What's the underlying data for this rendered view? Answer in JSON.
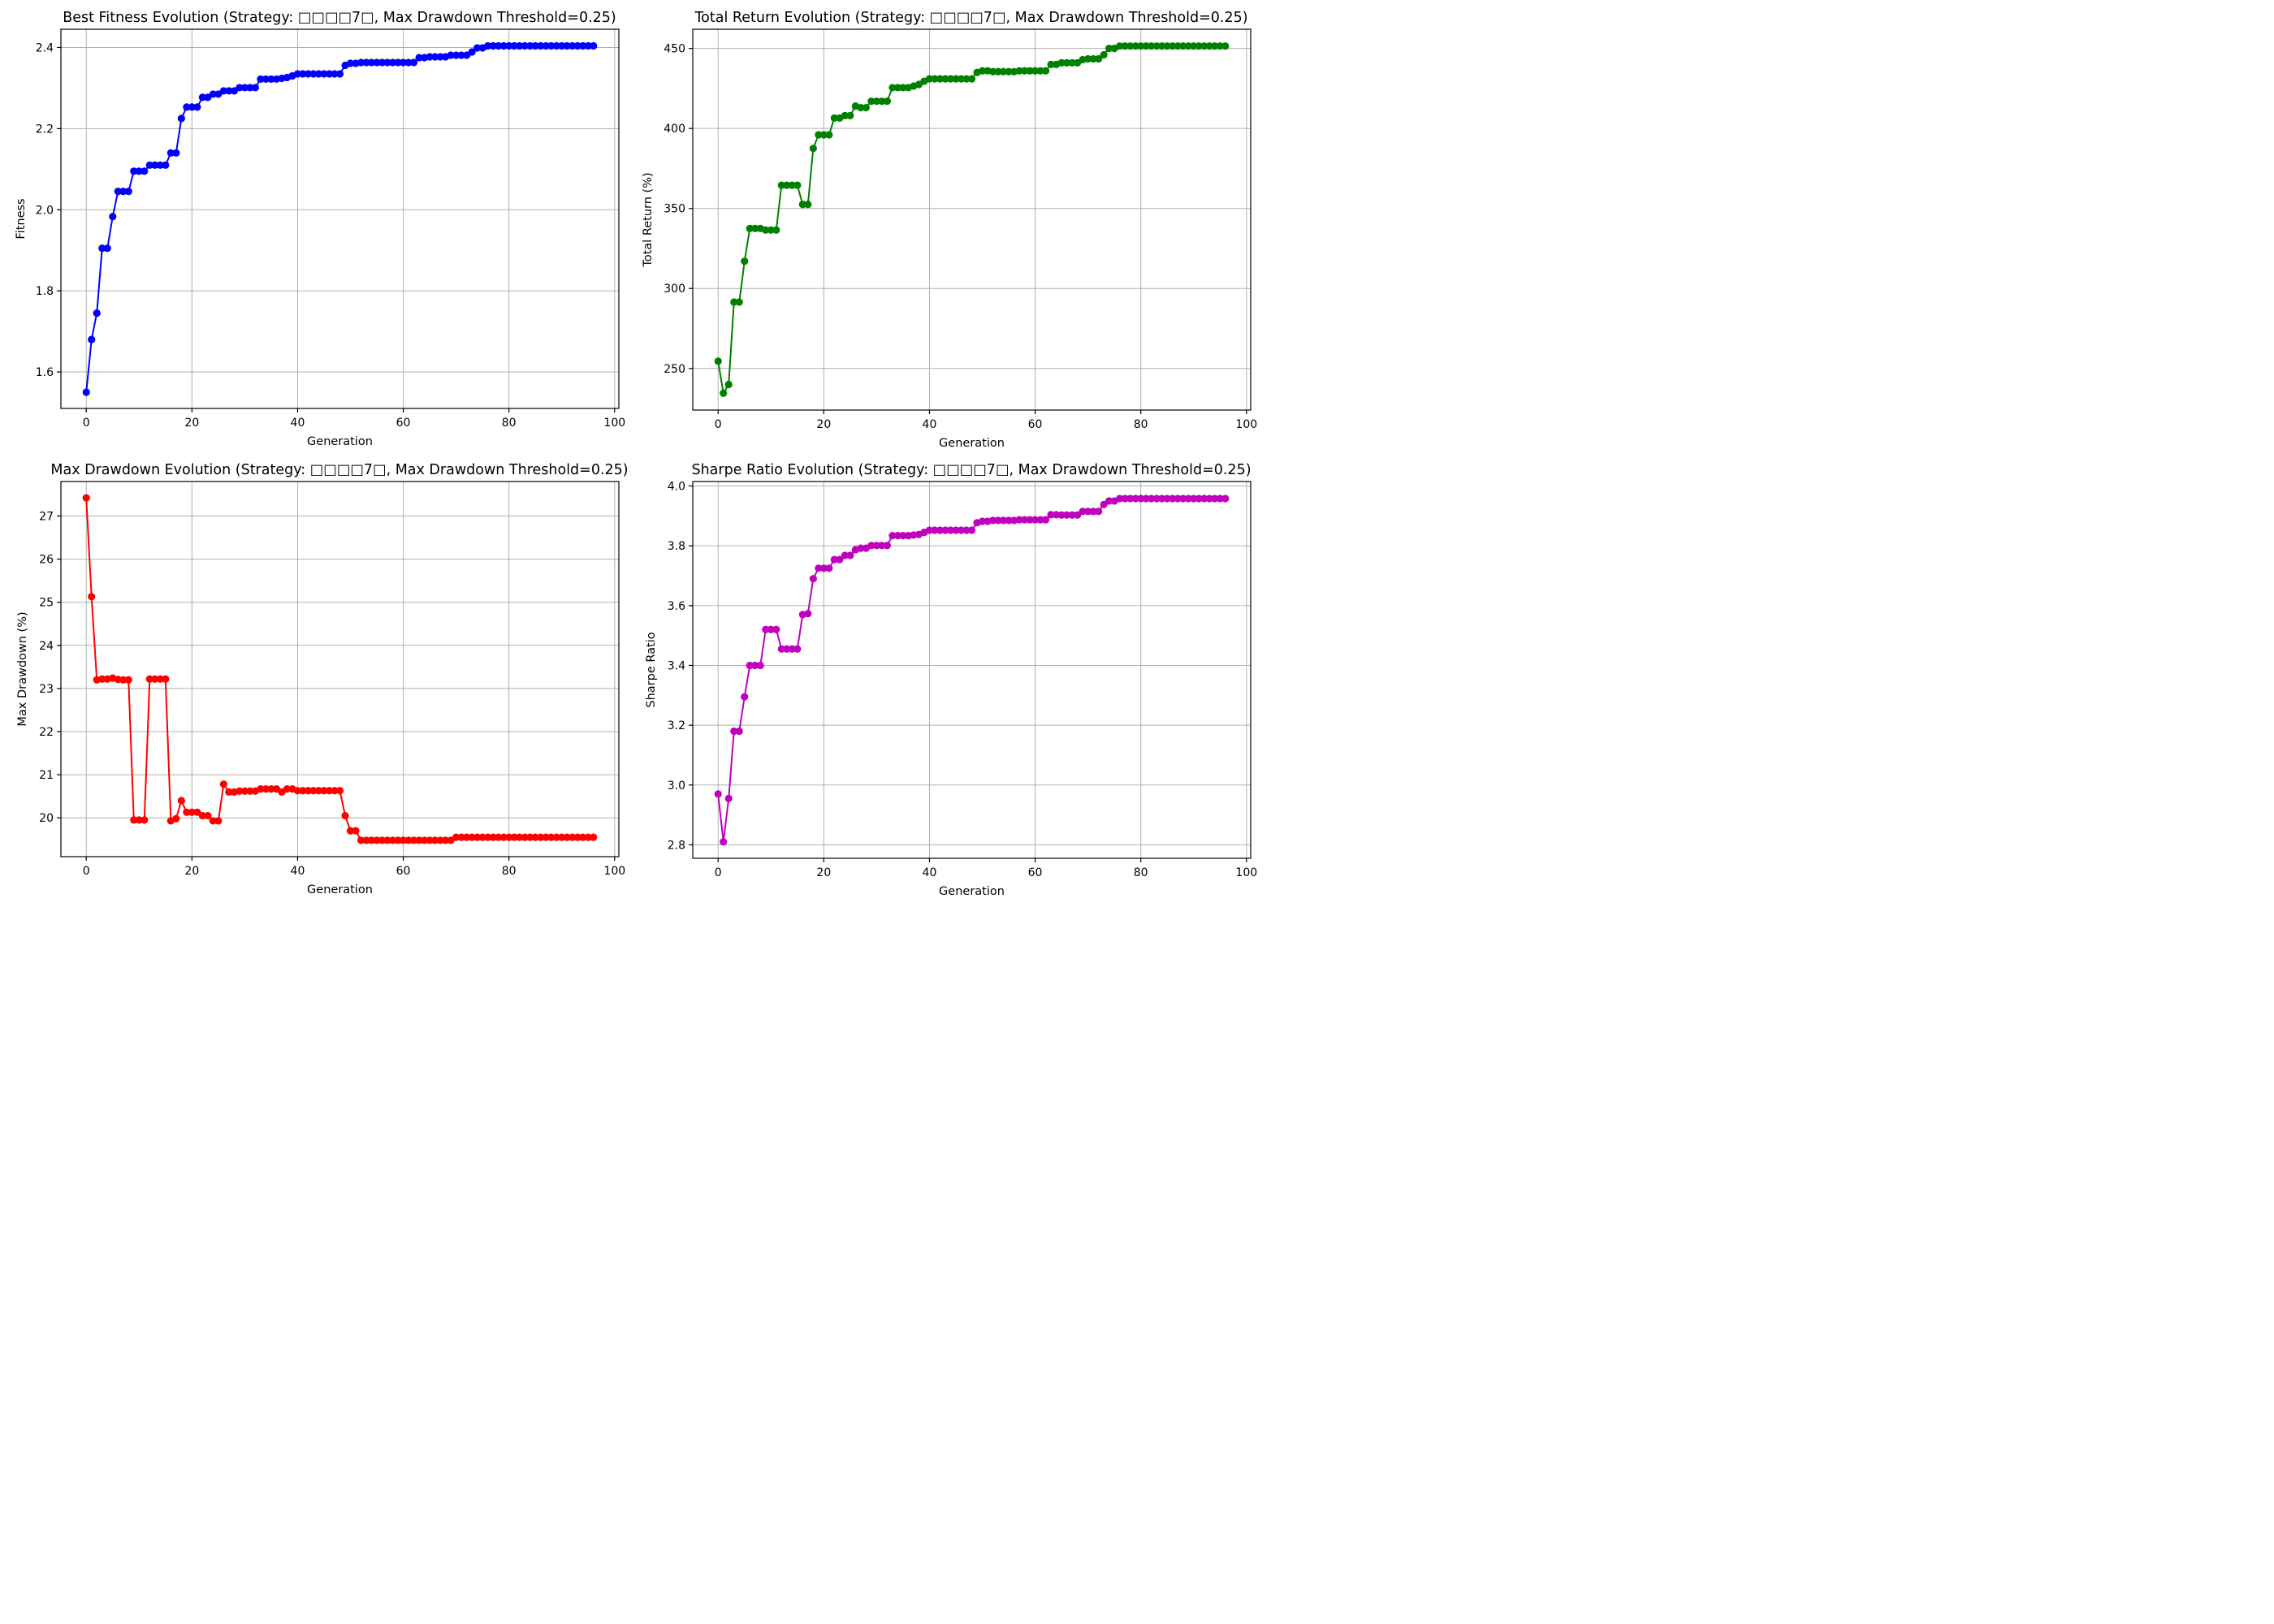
{
  "colors": {
    "fitness": "#0000ff",
    "return": "#008000",
    "drawdown": "#ff0000",
    "sharpe": "#bf00bf"
  },
  "chart_data": [
    {
      "type": "line",
      "title": "Best Fitness Evolution (Strategy: □□□□7□, Max Drawdown Threshold=0.25)",
      "xlabel": "Generation",
      "ylabel": "Fitness",
      "xlim": [
        -4.8,
        100.8
      ],
      "ylim": [
        1.51,
        2.445
      ],
      "xticks": [
        0,
        20,
        40,
        60,
        80,
        100
      ],
      "yticks": [
        1.6,
        1.8,
        2.0,
        2.2,
        2.4
      ],
      "ytick_labels": [
        "1.6",
        "1.8",
        "2.0",
        "2.2",
        "2.4"
      ],
      "grid": true,
      "marker": "circle",
      "color": "#0000ff",
      "x": [
        0,
        1,
        2,
        3,
        4,
        5,
        6,
        7,
        8,
        9,
        10,
        11,
        12,
        13,
        14,
        15,
        16,
        17,
        18,
        19,
        20,
        21,
        22,
        23,
        24,
        25,
        26,
        27,
        28,
        29,
        30,
        31,
        32,
        33,
        34,
        35,
        36,
        37,
        38,
        39,
        40,
        41,
        42,
        43,
        44,
        45,
        46,
        47,
        48,
        49,
        50,
        51,
        52,
        53,
        54,
        55,
        56,
        57,
        58,
        59,
        60,
        61,
        62,
        63,
        64,
        65,
        66,
        67,
        68,
        69,
        70,
        71,
        72,
        73,
        74,
        75,
        76,
        77,
        78,
        79,
        80,
        81,
        82,
        83,
        84,
        85,
        86,
        87,
        88,
        89,
        90,
        91,
        92,
        93,
        94,
        95,
        96
      ],
      "y": [
        1.55,
        1.68,
        1.745,
        1.905,
        1.905,
        1.983,
        2.045,
        2.045,
        2.045,
        2.095,
        2.095,
        2.095,
        2.11,
        2.11,
        2.11,
        2.11,
        2.14,
        2.14,
        2.225,
        2.253,
        2.253,
        2.253,
        2.277,
        2.277,
        2.285,
        2.285,
        2.293,
        2.293,
        2.293,
        2.301,
        2.301,
        2.301,
        2.301,
        2.322,
        2.322,
        2.322,
        2.322,
        2.324,
        2.326,
        2.33,
        2.335,
        2.335,
        2.335,
        2.335,
        2.335,
        2.335,
        2.335,
        2.335,
        2.335,
        2.356,
        2.361,
        2.361,
        2.363,
        2.363,
        2.363,
        2.363,
        2.363,
        2.363,
        2.363,
        2.363,
        2.363,
        2.363,
        2.363,
        2.375,
        2.375,
        2.377,
        2.377,
        2.377,
        2.377,
        2.381,
        2.381,
        2.381,
        2.381,
        2.389,
        2.399,
        2.399,
        2.404,
        2.404,
        2.404,
        2.404,
        2.404,
        2.404,
        2.404,
        2.404,
        2.404,
        2.404,
        2.404,
        2.404,
        2.404,
        2.404,
        2.404,
        2.404,
        2.404,
        2.404,
        2.404,
        2.404,
        2.404
      ]
    },
    {
      "type": "line",
      "title": "Total Return Evolution (Strategy: □□□□7□, Max Drawdown Threshold=0.25)",
      "xlabel": "Generation",
      "ylabel": "Total Return (%)",
      "xlim": [
        -4.8,
        100.8
      ],
      "ylim": [
        224,
        462
      ],
      "xticks": [
        0,
        20,
        40,
        60,
        80,
        100
      ],
      "yticks": [
        250,
        300,
        350,
        400,
        450
      ],
      "ytick_labels": [
        "250",
        "300",
        "350",
        "400",
        "450"
      ],
      "grid": true,
      "marker": "circle",
      "color": "#008000",
      "x": [
        0,
        1,
        2,
        3,
        4,
        5,
        6,
        7,
        8,
        9,
        10,
        11,
        12,
        13,
        14,
        15,
        16,
        17,
        18,
        19,
        20,
        21,
        22,
        23,
        24,
        25,
        26,
        27,
        28,
        29,
        30,
        31,
        32,
        33,
        34,
        35,
        36,
        37,
        38,
        39,
        40,
        41,
        42,
        43,
        44,
        45,
        46,
        47,
        48,
        49,
        50,
        51,
        52,
        53,
        54,
        55,
        56,
        57,
        58,
        59,
        60,
        61,
        62,
        63,
        64,
        65,
        66,
        67,
        68,
        69,
        70,
        71,
        72,
        73,
        74,
        75,
        76,
        77,
        78,
        79,
        80,
        81,
        82,
        83,
        84,
        85,
        86,
        87,
        88,
        89,
        90,
        91,
        92,
        93,
        94,
        95,
        96
      ],
      "y": [
        254.5,
        234.5,
        240,
        291.5,
        291.5,
        317,
        337.5,
        337.5,
        337.5,
        336.5,
        336.5,
        336.5,
        364.5,
        364.5,
        364.5,
        364.5,
        352.5,
        352.5,
        387.5,
        396,
        396,
        396,
        406.5,
        406.5,
        408,
        408,
        414,
        413,
        413,
        417,
        417,
        417,
        417,
        425.5,
        425.5,
        425.5,
        425.5,
        426.5,
        427.5,
        429.5,
        431,
        431,
        431,
        431,
        431,
        431,
        431,
        431,
        431,
        435,
        436,
        436,
        435.5,
        435.5,
        435.5,
        435.5,
        435.5,
        436,
        436,
        436,
        436,
        436,
        436,
        440,
        440,
        441,
        441,
        441,
        441,
        443,
        443.5,
        443.5,
        443.5,
        446,
        450,
        450,
        451.5,
        451.5,
        451.5,
        451.5,
        451.5,
        451.5,
        451.5,
        451.5,
        451.5,
        451.5,
        451.5,
        451.5,
        451.5,
        451.5,
        451.5,
        451.5,
        451.5,
        451.5,
        451.5,
        451.5,
        451.5
      ]
    },
    {
      "type": "line",
      "title": "Max Drawdown Evolution (Strategy: □□□□7□, Max Drawdown Threshold=0.25)",
      "xlabel": "Generation",
      "ylabel": "Max Drawdown (%)",
      "xlim": [
        -4.8,
        100.8
      ],
      "ylim": [
        19.1,
        27.8
      ],
      "xticks": [
        0,
        20,
        40,
        60,
        80,
        100
      ],
      "yticks": [
        20,
        21,
        22,
        23,
        24,
        25,
        26,
        27
      ],
      "ytick_labels": [
        "20",
        "21",
        "22",
        "23",
        "24",
        "25",
        "26",
        "27"
      ],
      "grid": true,
      "marker": "circle",
      "color": "#ff0000",
      "x": [
        0,
        1,
        2,
        3,
        4,
        5,
        6,
        7,
        8,
        9,
        10,
        11,
        12,
        13,
        14,
        15,
        16,
        17,
        18,
        19,
        20,
        21,
        22,
        23,
        24,
        25,
        26,
        27,
        28,
        29,
        30,
        31,
        32,
        33,
        34,
        35,
        36,
        37,
        38,
        39,
        40,
        41,
        42,
        43,
        44,
        45,
        46,
        47,
        48,
        49,
        50,
        51,
        52,
        53,
        54,
        55,
        56,
        57,
        58,
        59,
        60,
        61,
        62,
        63,
        64,
        65,
        66,
        67,
        68,
        69,
        70,
        71,
        72,
        73,
        74,
        75,
        76,
        77,
        78,
        79,
        80,
        81,
        82,
        83,
        84,
        85,
        86,
        87,
        88,
        89,
        90,
        91,
        92,
        93,
        94,
        95,
        96
      ],
      "y": [
        27.42,
        25.13,
        23.2,
        23.22,
        23.22,
        23.24,
        23.21,
        23.2,
        23.2,
        19.95,
        19.95,
        19.95,
        23.22,
        23.22,
        23.22,
        23.22,
        19.93,
        19.98,
        20.4,
        20.13,
        20.13,
        20.13,
        20.05,
        20.05,
        19.93,
        19.93,
        20.78,
        20.6,
        20.6,
        20.62,
        20.62,
        20.62,
        20.62,
        20.67,
        20.67,
        20.67,
        20.67,
        20.6,
        20.67,
        20.67,
        20.63,
        20.63,
        20.63,
        20.63,
        20.63,
        20.63,
        20.63,
        20.63,
        20.63,
        20.05,
        19.7,
        19.7,
        19.48,
        19.48,
        19.48,
        19.48,
        19.48,
        19.48,
        19.48,
        19.48,
        19.48,
        19.48,
        19.48,
        19.48,
        19.48,
        19.48,
        19.48,
        19.48,
        19.48,
        19.48,
        19.55,
        19.55,
        19.55,
        19.55,
        19.55,
        19.55,
        19.55,
        19.55,
        19.55,
        19.55,
        19.55,
        19.55,
        19.55,
        19.55,
        19.55,
        19.55,
        19.55,
        19.55,
        19.55,
        19.55,
        19.55,
        19.55,
        19.55,
        19.55,
        19.55,
        19.55,
        19.55
      ]
    },
    {
      "type": "line",
      "title": "Sharpe Ratio Evolution (Strategy: □□□□7□, Max Drawdown Threshold=0.25)",
      "xlabel": "Generation",
      "ylabel": "Sharpe Ratio",
      "xlim": [
        -4.8,
        100.8
      ],
      "ylim": [
        2.755,
        4.015
      ],
      "xticks": [
        0,
        20,
        40,
        60,
        80,
        100
      ],
      "yticks": [
        2.8,
        3.0,
        3.2,
        3.4,
        3.6,
        3.8,
        4.0
      ],
      "ytick_labels": [
        "2.8",
        "3.0",
        "3.2",
        "3.4",
        "3.6",
        "3.8",
        "4.0"
      ],
      "grid": true,
      "marker": "circle",
      "color": "#bf00bf",
      "x": [
        0,
        1,
        2,
        3,
        4,
        5,
        6,
        7,
        8,
        9,
        10,
        11,
        12,
        13,
        14,
        15,
        16,
        17,
        18,
        19,
        20,
        21,
        22,
        23,
        24,
        25,
        26,
        27,
        28,
        29,
        30,
        31,
        32,
        33,
        34,
        35,
        36,
        37,
        38,
        39,
        40,
        41,
        42,
        43,
        44,
        45,
        46,
        47,
        48,
        49,
        50,
        51,
        52,
        53,
        54,
        55,
        56,
        57,
        58,
        59,
        60,
        61,
        62,
        63,
        64,
        65,
        66,
        67,
        68,
        69,
        70,
        71,
        72,
        73,
        74,
        75,
        76,
        77,
        78,
        79,
        80,
        81,
        82,
        83,
        84,
        85,
        86,
        87,
        88,
        89,
        90,
        91,
        92,
        93,
        94,
        95,
        96
      ],
      "y": [
        2.97,
        2.81,
        2.955,
        3.18,
        3.18,
        3.295,
        3.4,
        3.4,
        3.4,
        3.52,
        3.52,
        3.52,
        3.455,
        3.455,
        3.455,
        3.455,
        3.57,
        3.573,
        3.69,
        3.725,
        3.725,
        3.725,
        3.754,
        3.754,
        3.768,
        3.768,
        3.787,
        3.792,
        3.792,
        3.801,
        3.801,
        3.801,
        3.801,
        3.834,
        3.834,
        3.834,
        3.834,
        3.836,
        3.838,
        3.845,
        3.852,
        3.852,
        3.852,
        3.852,
        3.852,
        3.852,
        3.852,
        3.852,
        3.852,
        3.877,
        3.882,
        3.882,
        3.885,
        3.885,
        3.885,
        3.885,
        3.885,
        3.887,
        3.887,
        3.887,
        3.887,
        3.887,
        3.887,
        3.904,
        3.904,
        3.903,
        3.903,
        3.903,
        3.903,
        3.915,
        3.915,
        3.915,
        3.915,
        3.938,
        3.95,
        3.95,
        3.958,
        3.958,
        3.958,
        3.958,
        3.958,
        3.958,
        3.958,
        3.958,
        3.958,
        3.958,
        3.958,
        3.958,
        3.958,
        3.958,
        3.958,
        3.958,
        3.958,
        3.958,
        3.958,
        3.958,
        3.958
      ]
    }
  ]
}
